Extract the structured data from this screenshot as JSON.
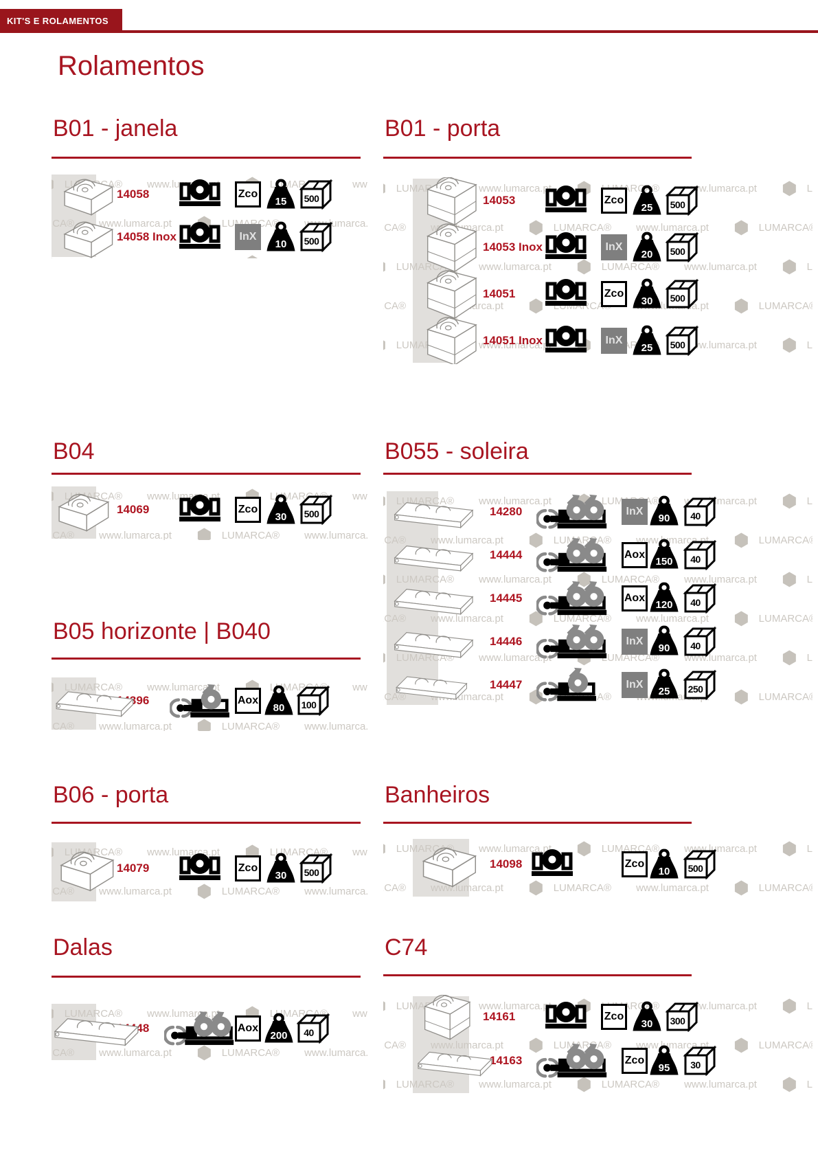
{
  "page": {
    "banner": "KIT'S E ROLAMENTOS",
    "title": "Rolamentos",
    "watermark": {
      "url": "www.lumarca.pt",
      "brand": "LUMARCA®"
    },
    "colors": {
      "banner_red": "#99151c",
      "heading_red": "#a81521",
      "code_red": "#ae1521",
      "roller_gray": "#8a8a8a",
      "inox_badge_bg": "#7f7f7f",
      "watermark_gray": "#ccc8c2"
    },
    "icons": {
      "roller_fixed": "fixed-roller-icon",
      "roller_tandem": "adjustable-tandem-roller-icon",
      "roller_single": "adjustable-single-roller-icon",
      "weight": "max-weight-kg-icon",
      "package": "units-per-box-icon",
      "material_badge": "material-code-badge",
      "watermark_hex": "hexagon-watermark-icon"
    }
  },
  "sections": [
    {
      "title": "B01 - janela",
      "rows": [
        {
          "code": "14058",
          "material": "Zco",
          "weight": "15",
          "pack": "500"
        },
        {
          "code": "14058 Inox",
          "material": "InX",
          "weight": "10",
          "pack": "500"
        }
      ]
    },
    {
      "title": "B01 - porta",
      "rows": [
        {
          "code": "14053",
          "material": "Zco",
          "weight": "25",
          "pack": "500"
        },
        {
          "code": "14053 Inox",
          "material": "InX",
          "weight": "20",
          "pack": "500"
        },
        {
          "code": "14051",
          "material": "Zco",
          "weight": "30",
          "pack": "500"
        },
        {
          "code": "14051 Inox",
          "material": "InX",
          "weight": "25",
          "pack": "500"
        }
      ]
    },
    {
      "title": "B04",
      "rows": [
        {
          "code": "14069",
          "material": "Zco",
          "weight": "30",
          "pack": "500"
        }
      ]
    },
    {
      "title": "B055 - soleira",
      "rows": [
        {
          "code": "14280",
          "material": "InX",
          "weight": "90",
          "pack": "40"
        },
        {
          "code": "14444",
          "material": "Aox",
          "weight": "150",
          "pack": "40"
        },
        {
          "code": "14445",
          "material": "Aox",
          "weight": "120",
          "pack": "40"
        },
        {
          "code": "14446",
          "material": "InX",
          "weight": "90",
          "pack": "40"
        },
        {
          "code": "14447",
          "material": "InX",
          "weight": "25",
          "pack": "250"
        }
      ]
    },
    {
      "title": "B05 horizonte | B040",
      "rows": [
        {
          "code": "14396",
          "material": "Aox",
          "weight": "80",
          "pack": "100"
        }
      ]
    },
    {
      "title": "B06 - porta",
      "rows": [
        {
          "code": "14079",
          "material": "Zco",
          "weight": "30",
          "pack": "500"
        }
      ]
    },
    {
      "title": "Banheiros",
      "rows": [
        {
          "code": "14098",
          "material": "Zco",
          "weight": "10",
          "pack": "500"
        }
      ]
    },
    {
      "title": "Dalas",
      "rows": [
        {
          "code": "14448",
          "material": "Aox",
          "weight": "200",
          "pack": "40"
        }
      ]
    },
    {
      "title": "C74",
      "rows": [
        {
          "code": "14161",
          "material": "Zco",
          "weight": "30",
          "pack": "300"
        },
        {
          "code": "14163",
          "material": "Zco",
          "weight": "95",
          "pack": "30"
        }
      ]
    }
  ]
}
